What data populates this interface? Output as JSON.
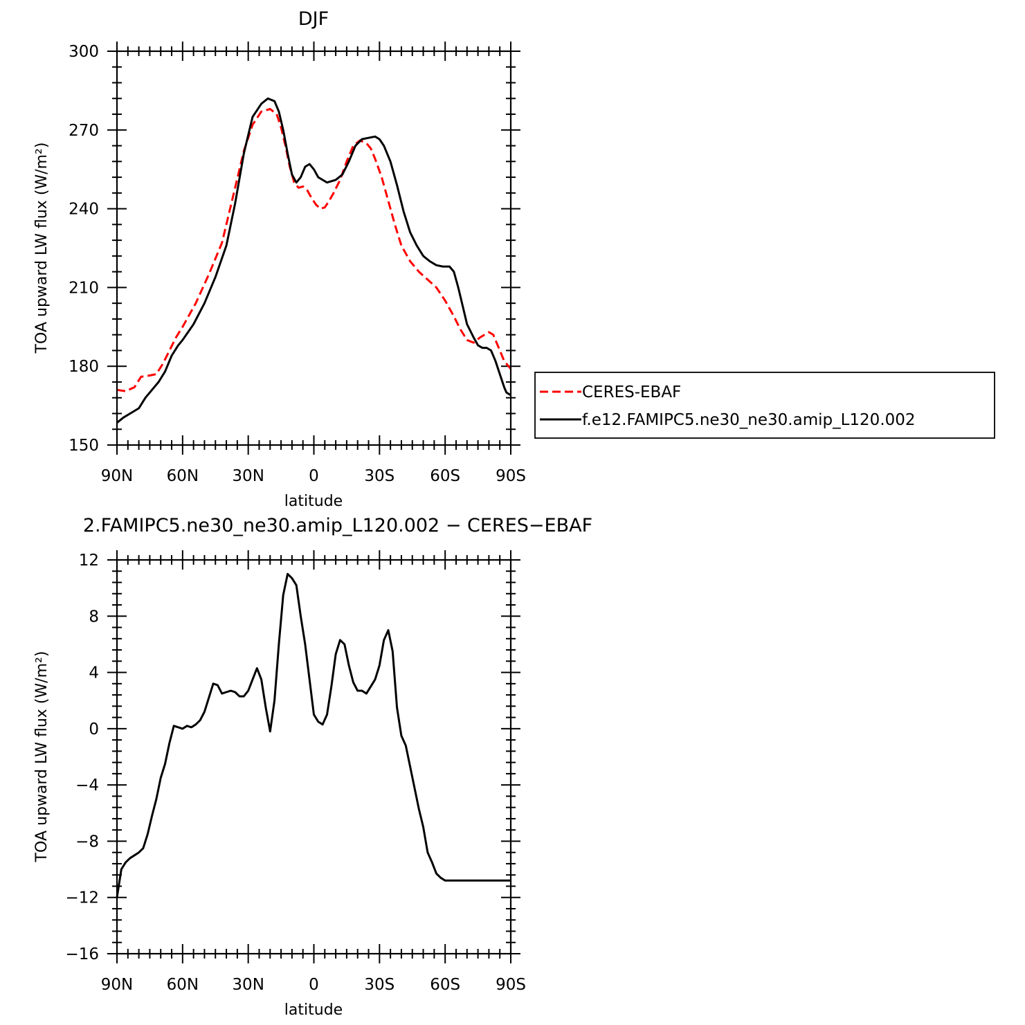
{
  "chart_data": [
    {
      "type": "line",
      "title": "DJF",
      "xlabel": "latitude",
      "ylabel": "TOA upward LW flux (W/m²)",
      "xlim": [
        90,
        -90
      ],
      "ylim": [
        150,
        300
      ],
      "y_ticks": [
        150,
        180,
        210,
        240,
        270,
        300
      ],
      "x_ticks": [
        90,
        60,
        30,
        0,
        -30,
        -60,
        -90
      ],
      "x_tick_labels": [
        "90N",
        "60N",
        "30N",
        "0",
        "30S",
        "60S",
        "90S"
      ],
      "grid": false,
      "legend_position": "right",
      "series": [
        {
          "name": "CERES-EBAF",
          "color": "#ff0000",
          "dash": "dashed",
          "x": [
            90,
            86,
            82,
            79,
            75,
            72,
            69,
            66,
            63,
            60,
            54,
            48,
            42,
            36,
            32,
            28,
            24,
            20,
            17,
            15,
            13,
            11,
            9,
            7,
            5,
            3,
            1,
            -1,
            -3,
            -5,
            -7,
            -9,
            -12,
            -15,
            -18,
            -21,
            -24,
            -26,
            -28,
            -31,
            -34,
            -37,
            -40,
            -44,
            -48,
            -52,
            -56,
            -60,
            -64,
            -67,
            -70,
            -73,
            -76,
            -78,
            -80,
            -82,
            -83,
            -85,
            -87,
            -89,
            -90
          ],
          "values": [
            171,
            170.5,
            172,
            176,
            176.5,
            177,
            181,
            186,
            191,
            195,
            204,
            215,
            227,
            248,
            262,
            272,
            277,
            278,
            276,
            271,
            264,
            256,
            250,
            248,
            248.5,
            247,
            244,
            241.5,
            240,
            240.5,
            243,
            246,
            251,
            258,
            264,
            266,
            265,
            263,
            259,
            252,
            243,
            234,
            226,
            220,
            216,
            213,
            210,
            205,
            199,
            194,
            190,
            189,
            191,
            192,
            193,
            192,
            190,
            186,
            182,
            180,
            179
          ]
        },
        {
          "name": "f.e12.FAMIPC5.ne30_ne30.amip_L120.002",
          "color": "#000000",
          "dash": "solid",
          "x": [
            90,
            87,
            84,
            80,
            77,
            74,
            71,
            68,
            65,
            62,
            60,
            55,
            50,
            45,
            40,
            36,
            32,
            28,
            24,
            21,
            18,
            16,
            14,
            12,
            10,
            8,
            6,
            4,
            2,
            0,
            -2,
            -4,
            -6,
            -8,
            -10,
            -13,
            -16,
            -19,
            -22,
            -25,
            -28,
            -30,
            -32,
            -35,
            -38,
            -41,
            -44,
            -47,
            -50,
            -53,
            -56,
            -59,
            -62,
            -64,
            -66,
            -68,
            -70,
            -73,
            -75,
            -77,
            -79,
            -81,
            -83,
            -85,
            -87,
            -88,
            -89,
            -90
          ],
          "values": [
            158.5,
            160.5,
            162,
            164,
            168,
            171,
            174,
            178,
            184,
            188,
            190,
            196,
            204,
            214,
            226,
            242,
            261,
            275,
            280,
            282,
            281,
            277,
            270,
            261,
            253,
            250,
            252,
            256,
            257,
            255,
            252,
            251,
            250,
            250.5,
            251,
            253,
            258,
            264,
            266.5,
            267,
            267.5,
            266.5,
            264,
            258,
            249,
            239,
            231,
            226,
            222,
            220,
            218.5,
            218,
            218,
            216,
            210,
            203,
            196,
            191,
            188,
            187,
            187,
            186,
            182,
            177,
            172,
            170,
            169.5,
            169
          ]
        }
      ]
    },
    {
      "type": "line",
      "title": "2.FAMIPC5.ne30_ne30.amip_L120.002 − CERES−EBAF",
      "xlabel": "latitude",
      "ylabel": "TOA upward LW flux (W/m²)",
      "xlim": [
        90,
        -90
      ],
      "ylim": [
        -16,
        12
      ],
      "y_ticks": [
        -16,
        -12,
        -8,
        -4,
        0,
        4,
        8,
        12
      ],
      "x_ticks": [
        90,
        60,
        30,
        0,
        -30,
        -60,
        -90
      ],
      "x_tick_labels": [
        "90N",
        "60N",
        "30N",
        "0",
        "30S",
        "60S",
        "90S"
      ],
      "grid": false,
      "series": [
        {
          "color": "#000000",
          "dash": "solid",
          "x": [
            90,
            88,
            86,
            84,
            82,
            80,
            78,
            76,
            74,
            72,
            70,
            68,
            66,
            64,
            62,
            60,
            58,
            56,
            54,
            52,
            50,
            48,
            46,
            44,
            42,
            40,
            38,
            36,
            34,
            32,
            30,
            28,
            26,
            24,
            22,
            20,
            18,
            16,
            14,
            12,
            10,
            8,
            6,
            4,
            2,
            0,
            -2,
            -4,
            -6,
            -8,
            -10,
            -12,
            -14,
            -16,
            -18,
            -20,
            -22,
            -24,
            -26,
            -28,
            -30,
            -32,
            -34,
            -36,
            -38,
            -40,
            -42,
            -44,
            -46,
            -48,
            -50,
            -52,
            -54,
            -56,
            -58,
            -60,
            -62,
            -64,
            -66,
            -68,
            -70,
            -72,
            -74,
            -76,
            -78,
            -80,
            -82,
            -84,
            -86,
            -88,
            -90
          ],
          "values": [
            -12,
            -10,
            -9.5,
            -9.2,
            -9,
            -8.8,
            -8.5,
            -7.5,
            -6.2,
            -5,
            -3.5,
            -2.5,
            -1,
            0.2,
            0.1,
            0,
            0.2,
            0.1,
            0.3,
            0.6,
            1.2,
            2.2,
            3.2,
            3.1,
            2.5,
            2.6,
            2.7,
            2.6,
            2.3,
            2.3,
            2.7,
            3.5,
            4.3,
            3.5,
            1.5,
            -0.2,
            2,
            6,
            9.5,
            11,
            10.7,
            10.2,
            8,
            6,
            3.5,
            1,
            0.5,
            0.3,
            1,
            3,
            5.3,
            6.3,
            6,
            4.5,
            3.3,
            2.7,
            2.7,
            2.5,
            3,
            3.5,
            4.5,
            6.3,
            7,
            5.5,
            1.5,
            -0.5,
            -1.2,
            -2.7,
            -4.2,
            -5.7,
            -7,
            -8.8,
            -9.5,
            -10.3,
            -10.6,
            -10.8,
            -10.8,
            -10.8,
            -10.8,
            -10.8,
            -10.8,
            -10.8,
            -10.8,
            -10.8,
            -10.8,
            -10.8,
            -10.8,
            -10.8,
            -10.8,
            -10.8,
            -10.8
          ]
        }
      ]
    }
  ]
}
